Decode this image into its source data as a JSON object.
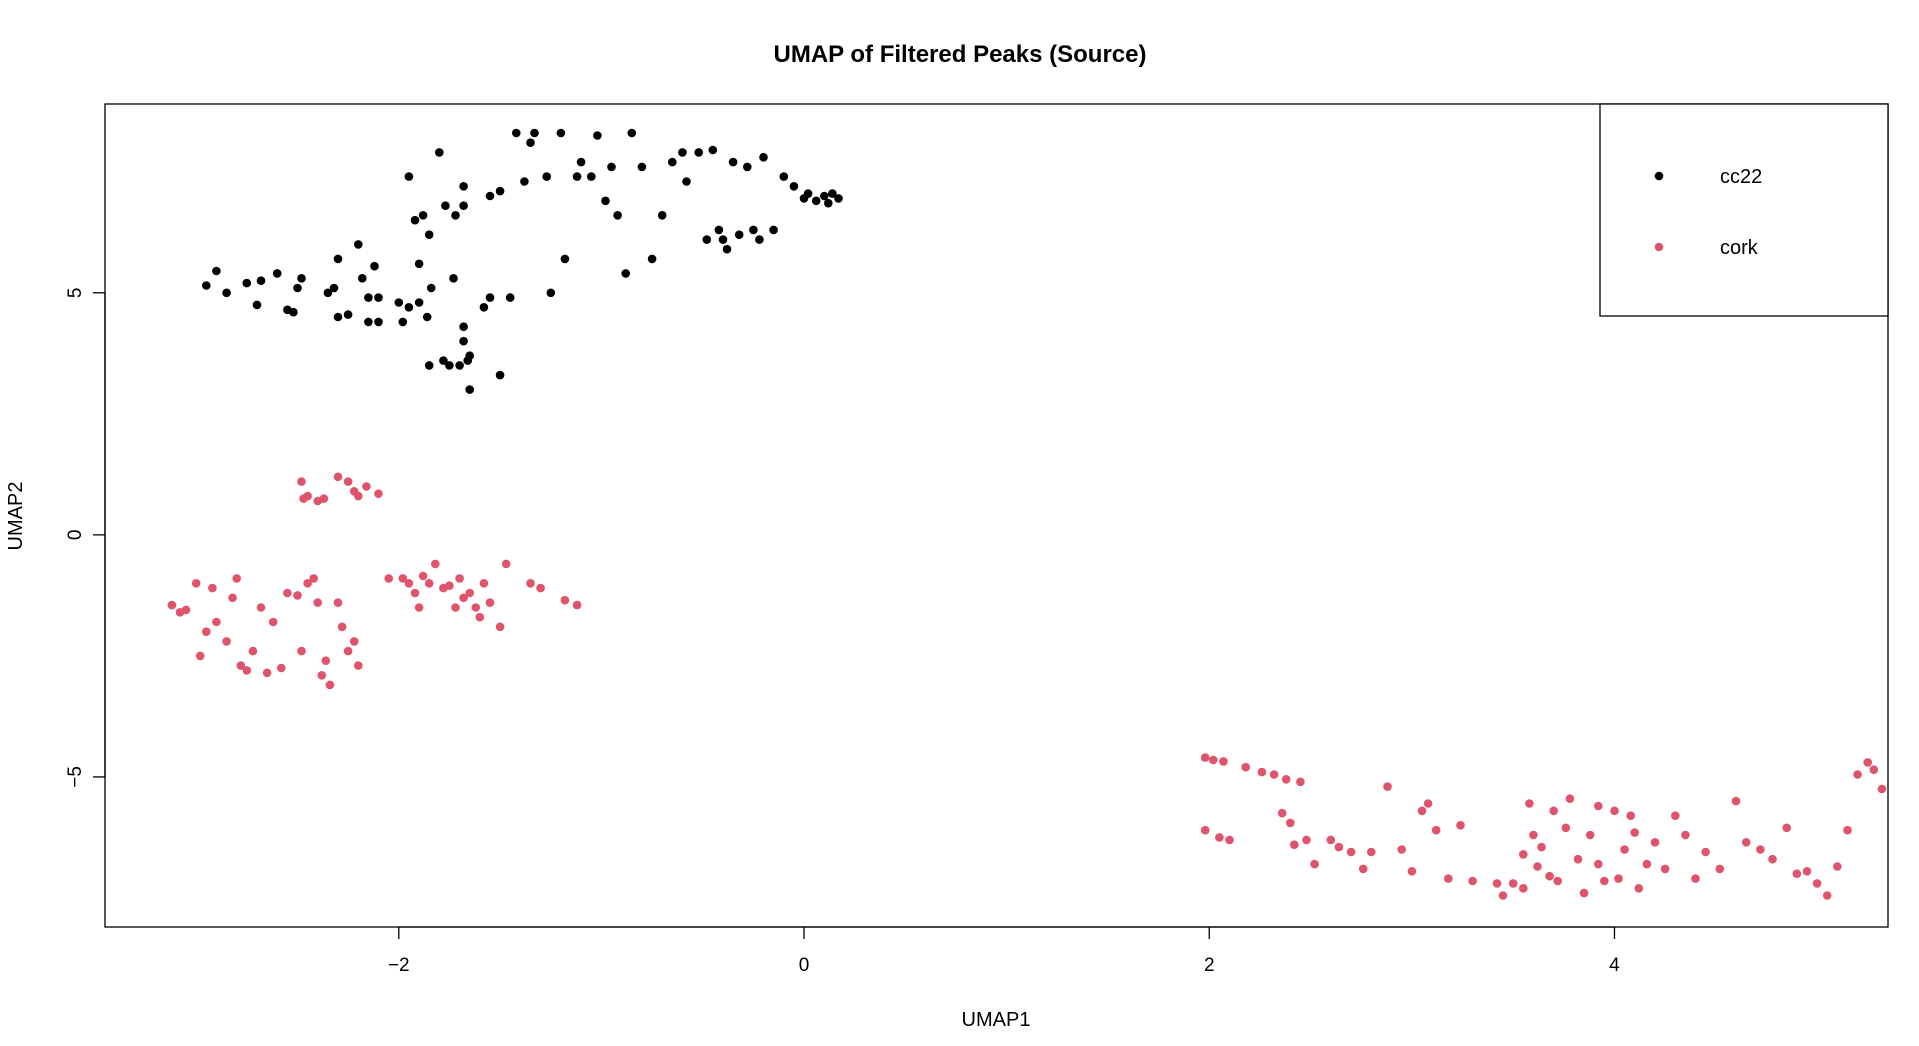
{
  "chart_data": {
    "type": "scatter",
    "title": "UMAP of Filtered Peaks (Source)",
    "xlabel": "UMAP1",
    "ylabel": "UMAP2",
    "xlim": [
      -3.45,
      5.35
    ],
    "ylim": [
      -8.1,
      8.9
    ],
    "xticks": [
      -2,
      0,
      2,
      4
    ],
    "yticks": [
      -5,
      0,
      5
    ],
    "grid": false,
    "legend_position": "top-right",
    "series": [
      {
        "name": "cc22",
        "color": "#000000",
        "points": [
          [
            -2.95,
            5.15
          ],
          [
            -2.9,
            5.45
          ],
          [
            -2.85,
            5.0
          ],
          [
            -2.75,
            5.2
          ],
          [
            -2.68,
            5.25
          ],
          [
            -2.7,
            4.75
          ],
          [
            -2.6,
            5.4
          ],
          [
            -2.55,
            4.65
          ],
          [
            -2.5,
            5.1
          ],
          [
            -2.48,
            5.3
          ],
          [
            -2.52,
            4.6
          ],
          [
            -2.35,
            5.0
          ],
          [
            -2.3,
            5.7
          ],
          [
            -2.32,
            5.1
          ],
          [
            -2.3,
            4.5
          ],
          [
            -2.25,
            4.55
          ],
          [
            -2.2,
            6.0
          ],
          [
            -2.18,
            5.3
          ],
          [
            -2.15,
            4.9
          ],
          [
            -2.12,
            5.55
          ],
          [
            -2.1,
            4.4
          ],
          [
            -2.15,
            4.4
          ],
          [
            -2.1,
            4.9
          ],
          [
            -2.0,
            4.8
          ],
          [
            -1.98,
            4.4
          ],
          [
            -1.95,
            4.7
          ],
          [
            -1.9,
            5.6
          ],
          [
            -1.92,
            6.5
          ],
          [
            -1.95,
            7.4
          ],
          [
            -1.9,
            4.8
          ],
          [
            -1.88,
            6.6
          ],
          [
            -1.85,
            6.2
          ],
          [
            -1.84,
            5.1
          ],
          [
            -1.86,
            4.5
          ],
          [
            -1.8,
            7.9
          ],
          [
            -1.77,
            6.8
          ],
          [
            -1.72,
            6.6
          ],
          [
            -1.68,
            6.8
          ],
          [
            -1.68,
            7.2
          ],
          [
            -1.73,
            5.3
          ],
          [
            -1.68,
            4.3
          ],
          [
            -1.68,
            4.0
          ],
          [
            -1.85,
            3.5
          ],
          [
            -1.78,
            3.6
          ],
          [
            -1.75,
            3.5
          ],
          [
            -1.7,
            3.5
          ],
          [
            -1.65,
            3.7
          ],
          [
            -1.66,
            3.6
          ],
          [
            -1.65,
            3.0
          ],
          [
            -1.58,
            4.7
          ],
          [
            -1.55,
            4.9
          ],
          [
            -1.55,
            7.0
          ],
          [
            -1.5,
            7.1
          ],
          [
            -1.5,
            3.3
          ],
          [
            -1.45,
            4.9
          ],
          [
            -1.42,
            8.3
          ],
          [
            -1.38,
            7.3
          ],
          [
            -1.35,
            8.1
          ],
          [
            -1.33,
            8.3
          ],
          [
            -1.27,
            7.4
          ],
          [
            -1.25,
            5.0
          ],
          [
            -1.2,
            8.3
          ],
          [
            -1.18,
            5.7
          ],
          [
            -1.12,
            7.4
          ],
          [
            -1.1,
            7.7
          ],
          [
            -1.05,
            7.4
          ],
          [
            -1.02,
            8.25
          ],
          [
            -0.98,
            6.9
          ],
          [
            -0.95,
            7.6
          ],
          [
            -0.92,
            6.6
          ],
          [
            -0.88,
            5.4
          ],
          [
            -0.85,
            8.3
          ],
          [
            -0.8,
            7.6
          ],
          [
            -0.75,
            5.7
          ],
          [
            -0.7,
            6.6
          ],
          [
            -0.65,
            7.7
          ],
          [
            -0.6,
            7.9
          ],
          [
            -0.58,
            7.3
          ],
          [
            -0.52,
            7.9
          ],
          [
            -0.48,
            6.1
          ],
          [
            -0.45,
            7.95
          ],
          [
            -0.42,
            6.3
          ],
          [
            -0.38,
            5.9
          ],
          [
            -0.4,
            6.1
          ],
          [
            -0.35,
            7.7
          ],
          [
            -0.32,
            6.2
          ],
          [
            -0.28,
            7.6
          ],
          [
            -0.25,
            6.3
          ],
          [
            -0.22,
            6.1
          ],
          [
            -0.2,
            7.8
          ],
          [
            -0.15,
            6.3
          ],
          [
            -0.1,
            7.4
          ],
          [
            -0.05,
            7.2
          ],
          [
            0.0,
            6.95
          ],
          [
            0.02,
            7.05
          ],
          [
            0.06,
            6.9
          ],
          [
            0.1,
            7.0
          ],
          [
            0.12,
            6.85
          ],
          [
            0.14,
            7.05
          ],
          [
            0.17,
            6.95
          ]
        ]
      },
      {
        "name": "cork",
        "color": "#DF536B",
        "points": [
          [
            -3.12,
            -1.45
          ],
          [
            -3.08,
            -1.6
          ],
          [
            -3.05,
            -1.55
          ],
          [
            -3.0,
            -1.0
          ],
          [
            -2.98,
            -2.5
          ],
          [
            -2.95,
            -2.0
          ],
          [
            -2.92,
            -1.1
          ],
          [
            -2.9,
            -1.8
          ],
          [
            -2.85,
            -2.2
          ],
          [
            -2.82,
            -1.3
          ],
          [
            -2.8,
            -0.9
          ],
          [
            -2.78,
            -2.7
          ],
          [
            -2.75,
            -2.8
          ],
          [
            -2.72,
            -2.4
          ],
          [
            -2.68,
            -1.5
          ],
          [
            -2.65,
            -2.85
          ],
          [
            -2.62,
            -1.8
          ],
          [
            -2.58,
            -2.75
          ],
          [
            -2.55,
            -1.2
          ],
          [
            -2.5,
            -1.25
          ],
          [
            -2.48,
            -2.4
          ],
          [
            -2.45,
            -1.0
          ],
          [
            -2.42,
            -0.9
          ],
          [
            -2.4,
            -1.4
          ],
          [
            -2.38,
            -2.9
          ],
          [
            -2.36,
            -2.6
          ],
          [
            -2.34,
            -3.1
          ],
          [
            -2.3,
            -1.4
          ],
          [
            -2.28,
            -1.9
          ],
          [
            -2.25,
            -2.4
          ],
          [
            -2.22,
            -2.2
          ],
          [
            -2.2,
            -2.7
          ],
          [
            -2.48,
            1.1
          ],
          [
            -2.47,
            0.75
          ],
          [
            -2.45,
            0.8
          ],
          [
            -2.4,
            0.7
          ],
          [
            -2.37,
            0.75
          ],
          [
            -2.3,
            1.2
          ],
          [
            -2.25,
            1.1
          ],
          [
            -2.22,
            0.9
          ],
          [
            -2.2,
            0.8
          ],
          [
            -2.16,
            1.0
          ],
          [
            -2.1,
            0.85
          ],
          [
            -2.05,
            -0.9
          ],
          [
            -1.98,
            -0.9
          ],
          [
            -1.95,
            -1.0
          ],
          [
            -1.92,
            -1.2
          ],
          [
            -1.9,
            -1.5
          ],
          [
            -1.88,
            -0.85
          ],
          [
            -1.85,
            -1.0
          ],
          [
            -1.82,
            -0.6
          ],
          [
            -1.78,
            -1.1
          ],
          [
            -1.75,
            -1.05
          ],
          [
            -1.72,
            -1.5
          ],
          [
            -1.7,
            -0.9
          ],
          [
            -1.68,
            -1.3
          ],
          [
            -1.65,
            -1.2
          ],
          [
            -1.62,
            -1.5
          ],
          [
            -1.6,
            -1.7
          ],
          [
            -1.58,
            -1.0
          ],
          [
            -1.55,
            -1.4
          ],
          [
            -1.5,
            -1.9
          ],
          [
            -1.47,
            -0.6
          ],
          [
            -1.35,
            -1.0
          ],
          [
            -1.3,
            -1.1
          ],
          [
            -1.18,
            -1.35
          ],
          [
            -1.12,
            -1.45
          ],
          [
            1.98,
            -4.6
          ],
          [
            2.02,
            -4.65
          ],
          [
            2.07,
            -4.68
          ],
          [
            1.98,
            -6.1
          ],
          [
            2.05,
            -6.25
          ],
          [
            2.1,
            -6.3
          ],
          [
            2.18,
            -4.8
          ],
          [
            2.26,
            -4.9
          ],
          [
            2.32,
            -4.95
          ],
          [
            2.38,
            -5.05
          ],
          [
            2.45,
            -5.1
          ],
          [
            2.36,
            -5.75
          ],
          [
            2.4,
            -5.95
          ],
          [
            2.42,
            -6.4
          ],
          [
            2.48,
            -6.3
          ],
          [
            2.52,
            -6.8
          ],
          [
            2.6,
            -6.3
          ],
          [
            2.64,
            -6.45
          ],
          [
            2.7,
            -6.55
          ],
          [
            2.76,
            -6.9
          ],
          [
            2.8,
            -6.55
          ],
          [
            2.88,
            -5.2
          ],
          [
            2.95,
            -6.5
          ],
          [
            3.0,
            -6.95
          ],
          [
            3.05,
            -5.7
          ],
          [
            3.08,
            -5.55
          ],
          [
            3.12,
            -6.1
          ],
          [
            3.18,
            -7.1
          ],
          [
            3.24,
            -6.0
          ],
          [
            3.3,
            -7.15
          ],
          [
            3.42,
            -7.2
          ],
          [
            3.5,
            -7.2
          ],
          [
            3.55,
            -6.6
          ],
          [
            3.6,
            -6.2
          ],
          [
            3.64,
            -6.45
          ],
          [
            3.7,
            -5.7
          ],
          [
            3.72,
            -7.15
          ],
          [
            3.78,
            -5.45
          ],
          [
            3.82,
            -6.7
          ],
          [
            3.88,
            -6.2
          ],
          [
            3.92,
            -5.6
          ],
          [
            3.95,
            -7.15
          ],
          [
            4.0,
            -5.7
          ],
          [
            4.05,
            -6.5
          ],
          [
            4.08,
            -5.8
          ],
          [
            4.1,
            -6.15
          ],
          [
            4.12,
            -7.3
          ],
          [
            4.16,
            -6.8
          ],
          [
            4.2,
            -6.35
          ],
          [
            4.25,
            -6.9
          ],
          [
            4.3,
            -5.8
          ],
          [
            4.35,
            -6.2
          ],
          [
            4.4,
            -7.1
          ],
          [
            4.45,
            -6.55
          ],
          [
            4.52,
            -6.9
          ],
          [
            4.6,
            -5.5
          ],
          [
            4.65,
            -6.35
          ],
          [
            4.72,
            -6.5
          ],
          [
            4.78,
            -6.7
          ],
          [
            4.85,
            -6.05
          ],
          [
            4.9,
            -7.0
          ],
          [
            4.95,
            -6.95
          ],
          [
            5.0,
            -7.2
          ],
          [
            5.05,
            -7.45
          ],
          [
            5.1,
            -6.85
          ],
          [
            5.15,
            -6.1
          ],
          [
            5.2,
            -4.95
          ],
          [
            5.25,
            -4.7
          ],
          [
            5.28,
            -4.85
          ],
          [
            5.32,
            -5.25
          ],
          [
            3.45,
            -7.45
          ],
          [
            3.55,
            -7.3
          ],
          [
            3.62,
            -6.85
          ],
          [
            3.68,
            -7.05
          ],
          [
            3.85,
            -7.4
          ],
          [
            3.58,
            -5.55
          ],
          [
            3.76,
            -6.05
          ],
          [
            3.92,
            -6.8
          ],
          [
            4.02,
            -7.1
          ]
        ]
      }
    ]
  }
}
